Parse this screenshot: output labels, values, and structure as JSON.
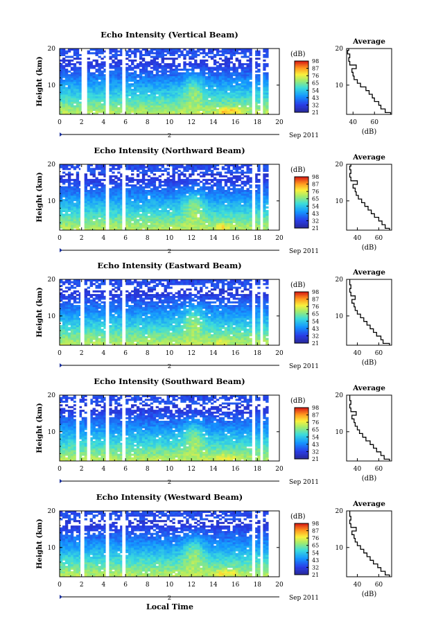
{
  "figure": {
    "xlabel": "Local Time",
    "date_label": "Sep 2011",
    "cb_unit": "(dB)",
    "avg_title": "Average",
    "avg_xlabel": "(dB)"
  },
  "chart_data": [
    {
      "type": "heatmap",
      "title": "Echo Intensity (Vertical Beam)",
      "ylabel": "Height (km)",
      "x_ticks": [
        "0",
        "2",
        "4",
        "6",
        "8",
        "10",
        "12",
        "14",
        "16",
        "18",
        "20"
      ],
      "y_ticks": [
        "10",
        "20"
      ],
      "day_marker": "2",
      "xlim": [
        0,
        20
      ],
      "ylim": [
        2,
        20
      ],
      "colorbar_ticks": [
        "21",
        "32",
        "43",
        "54",
        "65",
        "76",
        "87",
        "98"
      ],
      "colorbar_range": [
        21,
        98
      ],
      "gaps_hours": [
        [
          2.0,
          2.5
        ],
        [
          4.2,
          4.5
        ],
        [
          5.7,
          6.0
        ],
        [
          17.6,
          17.8
        ],
        [
          18.3,
          18.5
        ]
      ],
      "hot_spots": [
        {
          "t": 15.0,
          "h": 3.0,
          "db": 85
        },
        {
          "t": 15.9,
          "h": 3.2,
          "db": 80
        }
      ],
      "average_profile": {
        "x_ticks": [
          "40",
          "60"
        ],
        "y_ticks": [
          "10",
          "20"
        ],
        "xlim": [
          34,
          76
        ],
        "heights": [
          2,
          3,
          4,
          5,
          6,
          7,
          8,
          9,
          10,
          11,
          12,
          13,
          14,
          15,
          16,
          17,
          18,
          19,
          20
        ],
        "values_db": [
          75,
          70,
          66,
          64,
          60,
          58,
          55,
          52,
          47,
          44,
          41,
          40,
          39,
          43,
          37,
          36,
          37,
          35,
          36
        ]
      }
    },
    {
      "type": "heatmap",
      "title": "Echo Intensity (Northward Beam)",
      "ylabel": "Height (km)",
      "x_ticks": [
        "0",
        "2",
        "4",
        "6",
        "8",
        "10",
        "12",
        "14",
        "16",
        "18",
        "20"
      ],
      "y_ticks": [
        "10",
        "20"
      ],
      "day_marker": "2",
      "xlim": [
        0,
        20
      ],
      "ylim": [
        2,
        20
      ],
      "colorbar_ticks": [
        "21",
        "32",
        "43",
        "54",
        "65",
        "76",
        "87",
        "98"
      ],
      "colorbar_range": [
        21,
        98
      ],
      "gaps_hours": [
        [
          1.9,
          2.2
        ],
        [
          4.2,
          4.5
        ],
        [
          5.7,
          6.0
        ],
        [
          17.6,
          17.8
        ],
        [
          18.3,
          18.5
        ]
      ],
      "hot_spots": [
        {
          "t": 14.8,
          "h": 3.0,
          "db": 80
        }
      ],
      "average_profile": {
        "x_ticks": [
          "40",
          "60"
        ],
        "y_ticks": [
          "10",
          "20"
        ],
        "xlim": [
          30,
          72
        ],
        "heights": [
          2,
          3,
          4,
          5,
          6,
          7,
          8,
          9,
          10,
          11,
          12,
          13,
          14,
          15,
          16,
          17,
          18,
          19,
          20
        ],
        "values_db": [
          70,
          66,
          63,
          60,
          56,
          53,
          50,
          47,
          44,
          41,
          39,
          38,
          36,
          40,
          34,
          33,
          34,
          33,
          34
        ]
      }
    },
    {
      "type": "heatmap",
      "title": "Echo Intensity (Eastward Beam)",
      "ylabel": "Height (km)",
      "x_ticks": [
        "0",
        "2",
        "4",
        "6",
        "8",
        "10",
        "12",
        "14",
        "16",
        "18",
        "20"
      ],
      "y_ticks": [
        "10",
        "20"
      ],
      "day_marker": "2",
      "xlim": [
        0,
        20
      ],
      "ylim": [
        2,
        20
      ],
      "colorbar_ticks": [
        "21",
        "32",
        "43",
        "54",
        "65",
        "76",
        "87",
        "98"
      ],
      "colorbar_range": [
        21,
        98
      ],
      "gaps_hours": [
        [
          1.9,
          2.2
        ],
        [
          4.2,
          4.5
        ],
        [
          5.7,
          6.0
        ],
        [
          17.6,
          17.8
        ],
        [
          18.3,
          18.5
        ]
      ],
      "hot_spots": [
        {
          "t": 14.8,
          "h": 3.0,
          "db": 78
        }
      ],
      "average_profile": {
        "x_ticks": [
          "40",
          "60"
        ],
        "y_ticks": [
          "10",
          "20"
        ],
        "xlim": [
          30,
          72
        ],
        "heights": [
          2,
          3,
          4,
          5,
          6,
          7,
          8,
          9,
          10,
          11,
          12,
          13,
          14,
          15,
          16,
          17,
          18,
          19,
          20
        ],
        "values_db": [
          70,
          64,
          62,
          58,
          55,
          52,
          49,
          46,
          43,
          40,
          38,
          37,
          35,
          38,
          34,
          33,
          34,
          33,
          33
        ]
      }
    },
    {
      "type": "heatmap",
      "title": "Echo Intensity (Southward Beam)",
      "ylabel": "Height (km)",
      "x_ticks": [
        "0",
        "2",
        "4",
        "6",
        "8",
        "10",
        "12",
        "14",
        "16",
        "18",
        "20"
      ],
      "y_ticks": [
        "10",
        "20"
      ],
      "day_marker": "2",
      "xlim": [
        0,
        20
      ],
      "ylim": [
        2,
        20
      ],
      "colorbar_ticks": [
        "21",
        "32",
        "43",
        "54",
        "65",
        "76",
        "87",
        "98"
      ],
      "colorbar_range": [
        21,
        98
      ],
      "gaps_hours": [
        [
          1.5,
          1.8
        ],
        [
          2.5,
          2.8
        ],
        [
          4.2,
          4.5
        ],
        [
          5.7,
          6.0
        ],
        [
          17.6,
          17.8
        ],
        [
          18.3,
          18.5
        ]
      ],
      "hot_spots": [
        {
          "t": 14.5,
          "h": 3.2,
          "db": 78
        },
        {
          "t": 15.6,
          "h": 3.0,
          "db": 76
        }
      ],
      "average_profile": {
        "x_ticks": [
          "40",
          "60"
        ],
        "y_ticks": [
          "10",
          "20"
        ],
        "xlim": [
          30,
          72
        ],
        "heights": [
          2,
          3,
          4,
          5,
          6,
          7,
          8,
          9,
          10,
          11,
          12,
          13,
          14,
          15,
          16,
          17,
          18,
          19,
          20
        ],
        "values_db": [
          70,
          65,
          62,
          58,
          55,
          52,
          48,
          45,
          42,
          40,
          38,
          37,
          35,
          39,
          34,
          33,
          34,
          33,
          33
        ]
      }
    },
    {
      "type": "heatmap",
      "title": "Echo Intensity (Westward Beam)",
      "ylabel": "Height (km)",
      "x_ticks": [
        "0",
        "2",
        "4",
        "6",
        "8",
        "10",
        "12",
        "14",
        "16",
        "18",
        "20"
      ],
      "y_ticks": [
        "10",
        "20"
      ],
      "day_marker": "2",
      "xlim": [
        0,
        20
      ],
      "ylim": [
        2,
        20
      ],
      "colorbar_ticks": [
        "21",
        "32",
        "43",
        "54",
        "65",
        "76",
        "87",
        "98"
      ],
      "colorbar_range": [
        21,
        98
      ],
      "gaps_hours": [
        [
          1.9,
          2.2
        ],
        [
          4.2,
          4.5
        ],
        [
          5.7,
          6.0
        ],
        [
          17.6,
          17.8
        ],
        [
          18.3,
          18.5
        ]
      ],
      "hot_spots": [
        {
          "t": 14.8,
          "h": 3.2,
          "db": 80
        },
        {
          "t": 15.8,
          "h": 3.0,
          "db": 78
        }
      ],
      "average_profile": {
        "x_ticks": [
          "40",
          "60"
        ],
        "y_ticks": [
          "10",
          "20"
        ],
        "xlim": [
          30,
          72
        ],
        "heights": [
          2,
          3,
          4,
          5,
          6,
          7,
          8,
          9,
          10,
          11,
          12,
          13,
          14,
          15,
          16,
          17,
          18,
          19,
          20
        ],
        "values_db": [
          70,
          66,
          62,
          59,
          55,
          52,
          49,
          46,
          43,
          40,
          38,
          37,
          35,
          39,
          34,
          33,
          34,
          33,
          33
        ]
      }
    }
  ]
}
